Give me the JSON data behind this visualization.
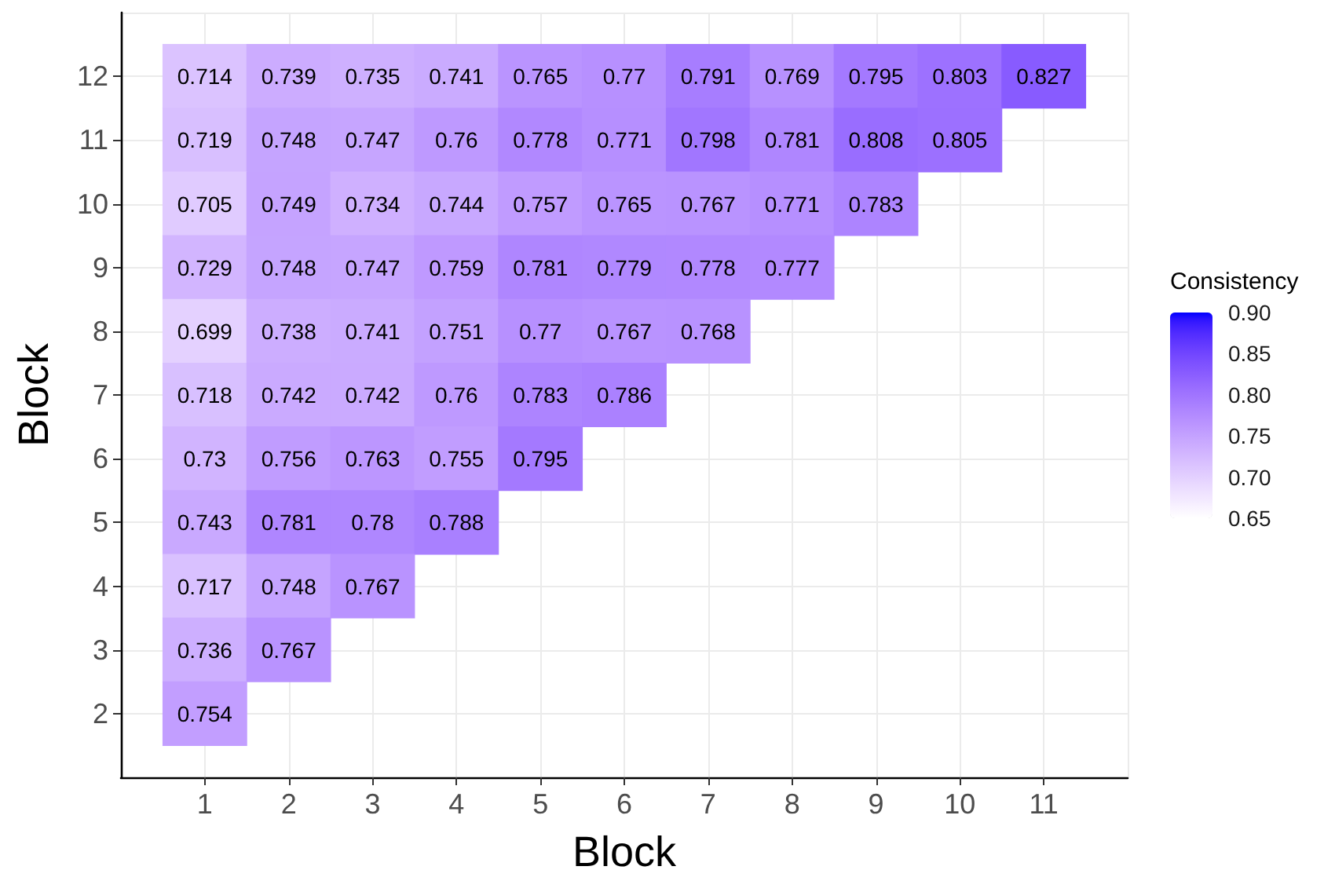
{
  "chart_data": {
    "type": "heatmap",
    "xlabel": "Block",
    "ylabel": "Block",
    "clabel": "Consistency",
    "categories": [
      "1",
      "2",
      "3",
      "4",
      "5",
      "6",
      "7",
      "8",
      "9",
      "10",
      "11"
    ],
    "y_categories": [
      "12",
      "11",
      "10",
      "9",
      "8",
      "7",
      "6",
      "5",
      "4",
      "3",
      "2"
    ],
    "cells": [
      [
        0.714,
        0.739,
        0.735,
        0.741,
        0.765,
        0.77,
        0.791,
        0.769,
        0.795,
        0.803,
        0.827
      ],
      [
        0.719,
        0.748,
        0.747,
        0.76,
        0.778,
        0.771,
        0.798,
        0.781,
        0.808,
        0.805,
        null
      ],
      [
        0.705,
        0.749,
        0.734,
        0.744,
        0.757,
        0.765,
        0.767,
        0.771,
        0.783,
        null,
        null
      ],
      [
        0.729,
        0.748,
        0.747,
        0.759,
        0.781,
        0.779,
        0.778,
        0.777,
        null,
        null,
        null
      ],
      [
        0.699,
        0.738,
        0.741,
        0.751,
        0.77,
        0.767,
        0.768,
        null,
        null,
        null,
        null
      ],
      [
        0.718,
        0.742,
        0.742,
        0.76,
        0.783,
        0.786,
        null,
        null,
        null,
        null,
        null
      ],
      [
        0.73,
        0.756,
        0.763,
        0.755,
        0.795,
        null,
        null,
        null,
        null,
        null,
        null
      ],
      [
        0.743,
        0.781,
        0.78,
        0.788,
        null,
        null,
        null,
        null,
        null,
        null,
        null
      ],
      [
        0.717,
        0.748,
        0.767,
        null,
        null,
        null,
        null,
        null,
        null,
        null,
        null
      ],
      [
        0.736,
        0.767,
        null,
        null,
        null,
        null,
        null,
        null,
        null,
        null,
        null
      ],
      [
        0.754,
        null,
        null,
        null,
        null,
        null,
        null,
        null,
        null,
        null,
        null
      ]
    ],
    "clim": [
      0.65,
      0.9
    ],
    "cticks": [
      0.65,
      {
        "value": 0.7,
        "label": "0.70"
      },
      0.75,
      {
        "value": 0.8,
        "label": "0.80"
      },
      0.85,
      {
        "value": 0.9,
        "label": "0.90"
      }
    ],
    "data_labels": true,
    "grid": true
  }
}
